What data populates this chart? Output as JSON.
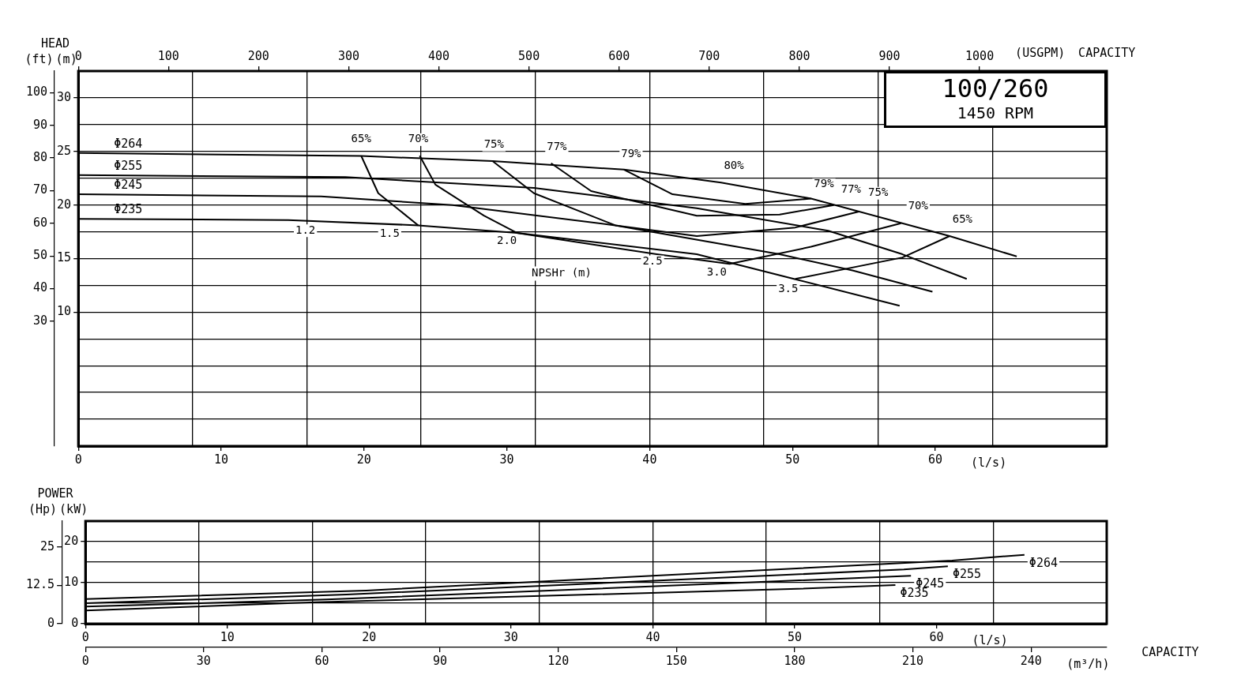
{
  "chart_data": [
    {
      "type": "line",
      "title": "100/260",
      "subtitle": "1450 RPM",
      "xlabel": "(l/s)",
      "x2label": "(USGPM)",
      "ylabel": "(m)",
      "y2label": "(ft)",
      "grid": true,
      "xlim": [
        0,
        72
      ],
      "xticks": [
        0,
        {
          "value": 8,
          "label": null
        },
        10,
        {
          "value": 16,
          "label": null
        },
        20,
        {
          "value": 24,
          "label": null
        },
        30,
        {
          "value": 32,
          "label": null
        },
        40,
        {
          "value": 40,
          "label": null
        },
        {
          "value": 48,
          "label": null
        },
        50,
        {
          "value": 56,
          "label": null
        },
        60,
        {
          "value": 64,
          "label": null
        }
      ],
      "x2lim": [
        0,
        1141
      ],
      "x2ticks": [
        0,
        100,
        200,
        300,
        400,
        500,
        600,
        700,
        800,
        900,
        1000
      ],
      "ylim": [
        -2.5,
        32.5
      ],
      "yticks": [
        {
          "value": 0,
          "label": null
        },
        {
          "value": 2.5,
          "label": null
        },
        {
          "value": 5,
          "label": null
        },
        {
          "value": 7.5,
          "label": null
        },
        {
          "value": 10,
          "label": null
        },
        10,
        {
          "value": 12.5,
          "label": null
        },
        {
          "value": 15,
          "label": null
        },
        15,
        {
          "value": 17.5,
          "label": null
        },
        {
          "value": 20,
          "label": null
        },
        20,
        {
          "value": 22.5,
          "label": null
        },
        {
          "value": 25,
          "label": null
        },
        25,
        {
          "value": 27.5,
          "label": null
        },
        {
          "value": 30,
          "label": null
        },
        30
      ],
      "y2lim": [
        -8.2,
        106.6
      ],
      "y2ticks": [
        30,
        40,
        50,
        60,
        70,
        80,
        90,
        100
      ],
      "series": [
        {
          "name": "Φ264",
          "color": "#000000",
          "x": [
            0,
            19.8,
            29.0,
            38.2,
            45.0,
            51.3,
            61.0,
            65.7
          ],
          "values": [
            24.86,
            24.57,
            24.1,
            23.3,
            22.1,
            20.6,
            17.1,
            15.2
          ]
        },
        {
          "name": "Φ255",
          "color": "#000000",
          "x": [
            0,
            18.7,
            31.9,
            43.3,
            52.5,
            57.7,
            62.2
          ],
          "values": [
            22.8,
            22.6,
            21.6,
            19.7,
            17.6,
            15.4,
            13.1
          ]
        },
        {
          "name": "Φ245",
          "color": "#000000",
          "x": [
            0,
            17.0,
            26.2,
            37.6,
            49.1,
            54.2,
            59.8
          ],
          "values": [
            21.0,
            20.8,
            20.0,
            18.1,
            15.4,
            13.9,
            11.9
          ]
        },
        {
          "name": "Φ235",
          "color": "#000000",
          "x": [
            0,
            14.7,
            23.8,
            30.7,
            43.3,
            50.1,
            57.5
          ],
          "values": [
            18.7,
            18.6,
            18.1,
            17.4,
            15.4,
            13.1,
            10.6
          ]
        },
        {
          "color": "#000000",
          "x": [
            19.8,
            21.0,
            23.8,
            40,
            50.2,
            57.7,
            61.0
          ],
          "values": [
            24.6,
            21.1,
            18.1,
            null,
            13.1,
            15.1,
            17.1
          ]
        },
        {
          "color": "#000000",
          "x": [
            23.9,
            25.0,
            28.4,
            30.7,
            40.5,
            45.6,
            51.3,
            57.6
          ],
          "values": [
            24.6,
            21.9,
            19.0,
            17.4,
            15.4,
            14.5,
            16.1,
            18.3
          ]
        },
        {
          "color": "#000000",
          "x": [
            29.0,
            31.9,
            37.6,
            43.3,
            50.2,
            54.7
          ],
          "values": [
            24.1,
            21.1,
            18.1,
            17.1,
            17.9,
            19.4
          ]
        },
        {
          "color": "#000000",
          "x": [
            33.1,
            35.9,
            43.3,
            49.1,
            52.9
          ],
          "values": [
            23.9,
            21.3,
            19.0,
            19.1,
            20.0
          ]
        },
        {
          "color": "#000000",
          "x": [
            38.2,
            41.6,
            46.7,
            51.3
          ],
          "values": [
            23.3,
            21.0,
            20.1,
            20.6
          ]
        }
      ],
      "annotations": [
        "HEAD",
        "CAPACITY",
        {
          "text": "65%",
          "x": 19.8,
          "y": 26.1
        },
        {
          "text": "70%",
          "x": 23.8,
          "y": 26.1
        },
        {
          "text": "75%",
          "x": 29.1,
          "y": 25.6
        },
        {
          "text": "77%",
          "x": 33.5,
          "y": 25.4
        },
        {
          "text": "79%",
          "x": 38.7,
          "y": 24.7
        },
        {
          "text": "80%",
          "x": 45.9,
          "y": 23.6
        },
        {
          "text": "79%",
          "x": 52.2,
          "y": 21.9
        },
        {
          "text": "77%",
          "x": 54.1,
          "y": 21.4
        },
        {
          "text": "75%",
          "x": 56.0,
          "y": 21.1
        },
        {
          "text": "70%",
          "x": 58.8,
          "y": 19.9
        },
        {
          "text": "65%",
          "x": 61.9,
          "y": 18.6
        },
        {
          "text": "1.2",
          "x": 15.9,
          "y": 17.6
        },
        {
          "text": "1.5",
          "x": 21.8,
          "y": 17.3
        },
        {
          "text": "2.0",
          "x": 30.0,
          "y": 16.6
        },
        {
          "text": "2.5",
          "x": 40.2,
          "y": 14.7
        },
        {
          "text": "3.0",
          "x": 44.7,
          "y": 13.7
        },
        {
          "text": "3.5",
          "x": 49.7,
          "y": 12.1
        },
        "NPSHr (m)"
      ]
    },
    {
      "type": "line",
      "xlabel": "(l/s)",
      "x2label": "(m³/h)",
      "ylabel": "(kW)",
      "y2label": "(Hp)",
      "grid": true,
      "xlim": [
        0,
        72
      ],
      "xticks": [
        0,
        {
          "value": 8,
          "label": null
        },
        10,
        {
          "value": 16,
          "label": null
        },
        20,
        {
          "value": 24,
          "label": null
        },
        30,
        {
          "value": 32,
          "label": null
        },
        40,
        {
          "value": 40,
          "label": null
        },
        {
          "value": 48,
          "label": null
        },
        50,
        {
          "value": 56,
          "label": null
        },
        60,
        {
          "value": 64,
          "label": null
        }
      ],
      "x2lim": [
        0,
        259.2
      ],
      "x2ticks": [
        0,
        30,
        60,
        90,
        120,
        150,
        180,
        210,
        240
      ],
      "ylim": [
        0,
        25
      ],
      "yticks": [
        0,
        {
          "value": 5,
          "label": null
        },
        10,
        {
          "value": 10,
          "label": null
        },
        {
          "value": 15,
          "label": null
        },
        20,
        {
          "value": 20,
          "label": null
        }
      ],
      "y2lim": [
        0,
        33.5
      ],
      "y2ticks": [
        0,
        12.5,
        25
      ],
      "series": [
        {
          "name": "Φ264",
          "color": "#000000",
          "x": [
            0,
            19.8,
            61.1,
            66.2
          ],
          "values": [
            6.0,
            8.1,
            15.4,
            16.8
          ]
        },
        {
          "name": "Φ255",
          "color": "#000000",
          "x": [
            0,
            18.4,
            57.7,
            60.8
          ],
          "values": [
            5.0,
            7.1,
            13.2,
            14.0
          ]
        },
        {
          "name": "Φ245",
          "color": "#000000",
          "x": [
            0,
            17.0,
            54.2,
            58.2
          ],
          "values": [
            4.2,
            5.9,
            11.1,
            11.7
          ]
        },
        {
          "name": "Φ235",
          "color": "#000000",
          "x": [
            0,
            15.8,
            50.2,
            57.1
          ],
          "values": [
            3.2,
            5.2,
            8.5,
            9.4
          ]
        }
      ],
      "annotations": [
        "POWER",
        "CAPACITY"
      ]
    }
  ]
}
